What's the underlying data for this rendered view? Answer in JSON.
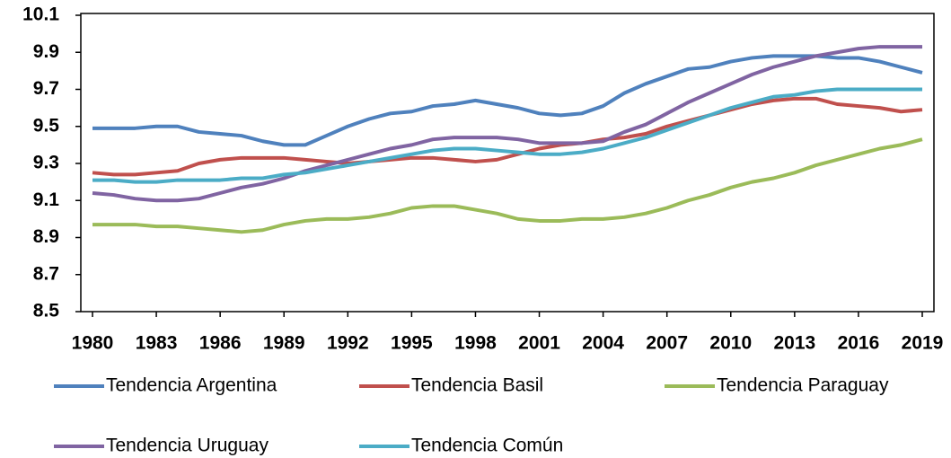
{
  "chart_data": {
    "type": "line",
    "x": [
      1980,
      1981,
      1982,
      1983,
      1984,
      1985,
      1986,
      1987,
      1988,
      1989,
      1990,
      1991,
      1992,
      1993,
      1994,
      1995,
      1996,
      1997,
      1998,
      1999,
      2000,
      2001,
      2002,
      2003,
      2004,
      2005,
      2006,
      2007,
      2008,
      2009,
      2010,
      2011,
      2012,
      2013,
      2014,
      2015,
      2016,
      2017,
      2018,
      2019
    ],
    "xlim": [
      1980,
      2019
    ],
    "xticks": [
      1980,
      1983,
      1986,
      1989,
      1992,
      1995,
      1998,
      2001,
      2004,
      2007,
      2010,
      2013,
      2016,
      2019
    ],
    "ylim": [
      8.5,
      10.1
    ],
    "yticks": [
      8.5,
      8.7,
      8.9,
      9.1,
      9.3,
      9.5,
      9.7,
      9.9,
      10.1
    ],
    "series": [
      {
        "name": "Tendencia Argentina",
        "color": "#4f81bd",
        "values": [
          9.49,
          9.49,
          9.49,
          9.5,
          9.5,
          9.47,
          9.46,
          9.45,
          9.42,
          9.4,
          9.4,
          9.45,
          9.5,
          9.54,
          9.57,
          9.58,
          9.61,
          9.62,
          9.64,
          9.62,
          9.6,
          9.57,
          9.56,
          9.57,
          9.61,
          9.68,
          9.73,
          9.77,
          9.81,
          9.82,
          9.85,
          9.87,
          9.88,
          9.88,
          9.88,
          9.87,
          9.87,
          9.85,
          9.82,
          9.79
        ]
      },
      {
        "name": "Tendencia Basil",
        "color": "#c0504d",
        "values": [
          9.25,
          9.24,
          9.24,
          9.25,
          9.26,
          9.3,
          9.32,
          9.33,
          9.33,
          9.33,
          9.32,
          9.31,
          9.3,
          9.31,
          9.32,
          9.33,
          9.33,
          9.32,
          9.31,
          9.32,
          9.35,
          9.38,
          9.4,
          9.41,
          9.43,
          9.44,
          9.46,
          9.5,
          9.53,
          9.56,
          9.59,
          9.62,
          9.64,
          9.65,
          9.65,
          9.62,
          9.61,
          9.6,
          9.58,
          9.59
        ]
      },
      {
        "name": "Tendencia Paraguay",
        "color": "#9bbb59",
        "values": [
          8.97,
          8.97,
          8.97,
          8.96,
          8.96,
          8.95,
          8.94,
          8.93,
          8.94,
          8.97,
          8.99,
          9.0,
          9.0,
          9.01,
          9.03,
          9.06,
          9.07,
          9.07,
          9.05,
          9.03,
          9.0,
          8.99,
          8.99,
          9.0,
          9.0,
          9.01,
          9.03,
          9.06,
          9.1,
          9.13,
          9.17,
          9.2,
          9.22,
          9.25,
          9.29,
          9.32,
          9.35,
          9.38,
          9.4,
          9.43
        ]
      },
      {
        "name": "Tendencia Uruguay",
        "color": "#8064a2",
        "values": [
          9.14,
          9.13,
          9.11,
          9.1,
          9.1,
          9.11,
          9.14,
          9.17,
          9.19,
          9.22,
          9.26,
          9.29,
          9.32,
          9.35,
          9.38,
          9.4,
          9.43,
          9.44,
          9.44,
          9.44,
          9.43,
          9.41,
          9.41,
          9.41,
          9.42,
          9.47,
          9.51,
          9.57,
          9.63,
          9.68,
          9.73,
          9.78,
          9.82,
          9.85,
          9.88,
          9.9,
          9.92,
          9.93,
          9.93,
          9.93
        ]
      },
      {
        "name": "Tendencia Común",
        "color": "#4bacc6",
        "values": [
          9.21,
          9.21,
          9.2,
          9.2,
          9.21,
          9.21,
          9.21,
          9.22,
          9.22,
          9.24,
          9.25,
          9.27,
          9.29,
          9.31,
          9.33,
          9.35,
          9.37,
          9.38,
          9.38,
          9.37,
          9.36,
          9.35,
          9.35,
          9.36,
          9.38,
          9.41,
          9.44,
          9.48,
          9.52,
          9.56,
          9.6,
          9.63,
          9.66,
          9.67,
          9.69,
          9.7,
          9.7,
          9.7,
          9.7,
          9.7
        ]
      }
    ]
  }
}
